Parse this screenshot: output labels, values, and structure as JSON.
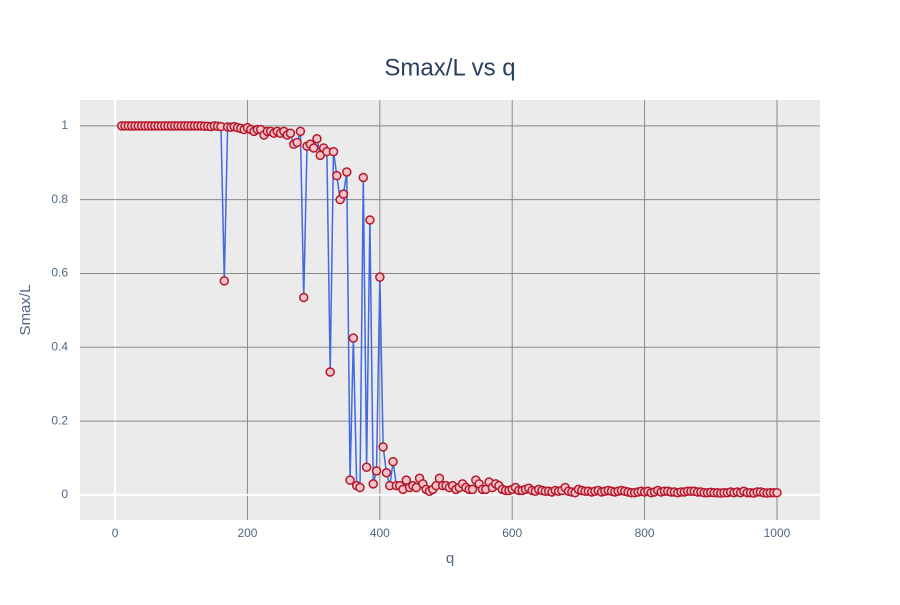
{
  "chart_data": {
    "type": "line",
    "title": "Smax/L vs q",
    "x_label": "q",
    "y_label": "Smax/L",
    "x": [
      10,
      15,
      20,
      25,
      30,
      35,
      40,
      45,
      50,
      55,
      60,
      65,
      70,
      75,
      80,
      85,
      90,
      95,
      100,
      105,
      110,
      115,
      120,
      125,
      130,
      135,
      140,
      145,
      150,
      155,
      160,
      165,
      170,
      175,
      180,
      185,
      190,
      195,
      200,
      205,
      210,
      215,
      220,
      225,
      230,
      235,
      240,
      245,
      250,
      255,
      260,
      265,
      270,
      275,
      280,
      285,
      290,
      295,
      300,
      305,
      310,
      315,
      320,
      325,
      330,
      335,
      340,
      345,
      350,
      355,
      360,
      365,
      370,
      375,
      380,
      385,
      390,
      395,
      400,
      405,
      410,
      415,
      420,
      425,
      430,
      435,
      440,
      445,
      450,
      455,
      460,
      465,
      470,
      475,
      480,
      485,
      490,
      495,
      500,
      505,
      510,
      515,
      520,
      525,
      530,
      535,
      540,
      545,
      550,
      555,
      560,
      565,
      570,
      575,
      580,
      585,
      590,
      595,
      600,
      605,
      610,
      615,
      620,
      625,
      630,
      635,
      640,
      645,
      650,
      655,
      660,
      665,
      670,
      675,
      680,
      685,
      690,
      695,
      700,
      705,
      710,
      715,
      720,
      725,
      730,
      735,
      740,
      745,
      750,
      755,
      760,
      765,
      770,
      775,
      780,
      785,
      790,
      795,
      800,
      805,
      810,
      815,
      820,
      825,
      830,
      835,
      840,
      845,
      850,
      855,
      860,
      865,
      870,
      875,
      880,
      885,
      890,
      895,
      900,
      905,
      910,
      915,
      920,
      925,
      930,
      935,
      940,
      945,
      950,
      955,
      960,
      965,
      970,
      975,
      980,
      985,
      990,
      995,
      1000
    ],
    "series": [
      {
        "name": "Smax/L",
        "color": "#4169e1",
        "marker_fill": "#f2c4c8",
        "marker_edge": "#b5172b",
        "values": [
          1,
          1,
          1,
          1,
          1,
          1,
          1,
          1,
          1,
          1,
          1,
          1,
          1,
          1,
          1,
          1,
          1,
          1,
          1,
          1,
          1,
          1,
          1,
          1,
          1,
          0.999,
          0.999,
          0.998,
          1,
          0.999,
          0.998,
          0.58,
          0.997,
          0.996,
          0.998,
          0.995,
          0.993,
          0.99,
          0.995,
          0.99,
          0.985,
          0.99,
          0.99,
          0.975,
          0.985,
          0.985,
          0.98,
          0.985,
          0.98,
          0.985,
          0.975,
          0.98,
          0.95,
          0.955,
          0.985,
          0.535,
          0.945,
          0.95,
          0.94,
          0.965,
          0.92,
          0.94,
          0.93,
          0.333,
          0.93,
          0.865,
          0.8,
          0.815,
          0.875,
          0.04,
          0.425,
          0.025,
          0.02,
          0.86,
          0.075,
          0.745,
          0.03,
          0.065,
          0.59,
          0.13,
          0.06,
          0.025,
          0.09,
          0.025,
          0.025,
          0.015,
          0.04,
          0.02,
          0.025,
          0.02,
          0.045,
          0.03,
          0.015,
          0.01,
          0.015,
          0.025,
          0.045,
          0.025,
          0.025,
          0.02,
          0.025,
          0.015,
          0.02,
          0.03,
          0.02,
          0.015,
          0.015,
          0.04,
          0.03,
          0.015,
          0.015,
          0.035,
          0.02,
          0.03,
          0.025,
          0.015,
          0.012,
          0.012,
          0.015,
          0.02,
          0.012,
          0.012,
          0.015,
          0.018,
          0.012,
          0.01,
          0.015,
          0.012,
          0.01,
          0.01,
          0.008,
          0.012,
          0.01,
          0.012,
          0.02,
          0.01,
          0.008,
          0.006,
          0.015,
          0.012,
          0.01,
          0.01,
          0.008,
          0.01,
          0.012,
          0.008,
          0.01,
          0.012,
          0.01,
          0.008,
          0.01,
          0.012,
          0.01,
          0.008,
          0.006,
          0.006,
          0.008,
          0.01,
          0.008,
          0.01,
          0.006,
          0.008,
          0.012,
          0.008,
          0.01,
          0.01,
          0.008,
          0.008,
          0.006,
          0.008,
          0.008,
          0.01,
          0.01,
          0.01,
          0.008,
          0.008,
          0.006,
          0.006,
          0.007,
          0.006,
          0.006,
          0.005,
          0.006,
          0.006,
          0.008,
          0.006,
          0.008,
          0.006,
          0.01,
          0.006,
          0.006,
          0.005,
          0.008,
          0.008,
          0.006,
          0.005,
          0.006,
          0.006,
          0.006
        ]
      }
    ],
    "xlim": [
      -53,
      1065
    ],
    "ylim": [
      -0.068,
      1.07
    ],
    "xticks": [
      0,
      200,
      400,
      600,
      800,
      1000
    ],
    "yticks": [
      0,
      0.2,
      0.4,
      0.6,
      0.8,
      1
    ],
    "grid": true
  }
}
